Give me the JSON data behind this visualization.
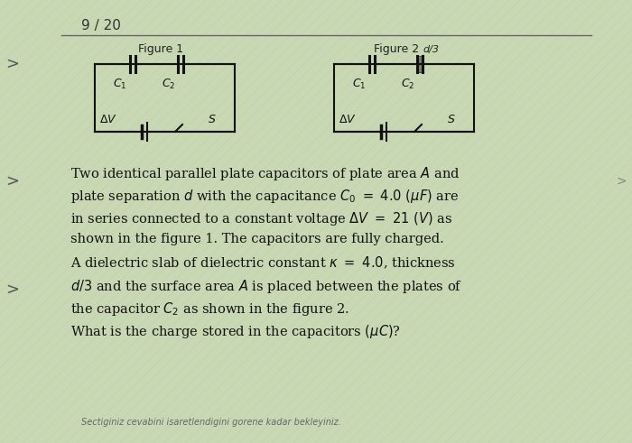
{
  "title": "9 / 20",
  "background_color": "#c8d8b4",
  "fig1_label": "Figure 1",
  "fig2_label": "Figure 2",
  "fig2_sublabel": "d/3",
  "footer_text": "Sectiginiz cevabini isaretlendigini gorene kadar bekleyiniz.",
  "circuit_color": "#111111",
  "dielectric_fill": "#707070",
  "text_color": "#111111",
  "sep_color": "#666666"
}
